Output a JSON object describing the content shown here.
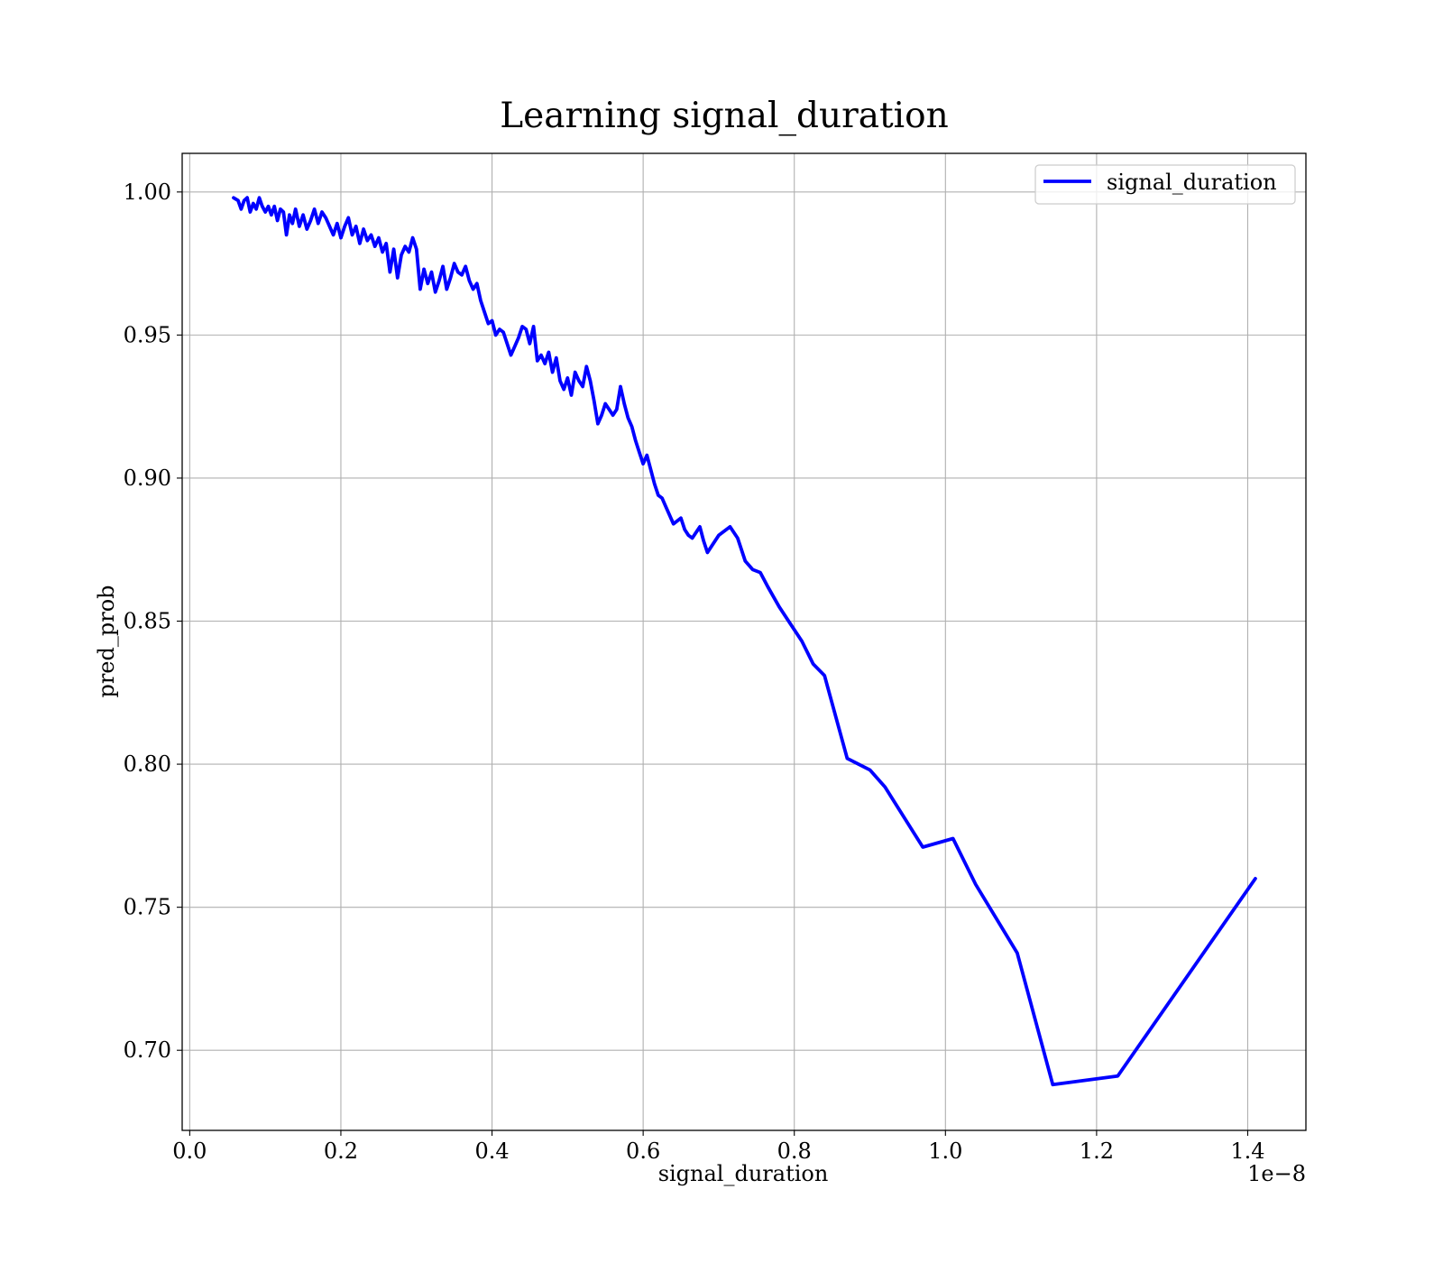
{
  "chart_data": {
    "type": "line",
    "title": "Learning signal_duration",
    "xlabel": "signal_duration",
    "ylabel": "pred_prob",
    "x_offset_label": "1e−8",
    "xlim": [
      -0.01,
      1.477
    ],
    "ylim": [
      0.672,
      1.0135
    ],
    "xticks": [
      0.0,
      0.2,
      0.4,
      0.6,
      0.8,
      1.0,
      1.2,
      1.4
    ],
    "xtick_labels": [
      "0.0",
      "0.2",
      "0.4",
      "0.6",
      "0.8",
      "1.0",
      "1.2",
      "1.4"
    ],
    "yticks": [
      0.7,
      0.75,
      0.8,
      0.85,
      0.9,
      0.95,
      1.0
    ],
    "ytick_labels": [
      "0.70",
      "0.75",
      "0.80",
      "0.85",
      "0.90",
      "0.95",
      "1.00"
    ],
    "grid": true,
    "legend_position": "top-right",
    "series": [
      {
        "name": "signal_duration",
        "color": "#0000ff",
        "x": [
          0.058,
          0.064,
          0.068,
          0.072,
          0.076,
          0.08,
          0.084,
          0.088,
          0.092,
          0.096,
          0.1,
          0.104,
          0.108,
          0.112,
          0.116,
          0.12,
          0.124,
          0.128,
          0.132,
          0.136,
          0.14,
          0.145,
          0.15,
          0.155,
          0.16,
          0.165,
          0.17,
          0.175,
          0.18,
          0.185,
          0.19,
          0.195,
          0.2,
          0.205,
          0.21,
          0.215,
          0.22,
          0.225,
          0.23,
          0.235,
          0.24,
          0.245,
          0.25,
          0.255,
          0.26,
          0.265,
          0.27,
          0.275,
          0.28,
          0.285,
          0.29,
          0.295,
          0.3,
          0.305,
          0.31,
          0.315,
          0.32,
          0.325,
          0.33,
          0.335,
          0.34,
          0.345,
          0.35,
          0.355,
          0.36,
          0.365,
          0.37,
          0.375,
          0.38,
          0.385,
          0.39,
          0.395,
          0.4,
          0.405,
          0.41,
          0.415,
          0.42,
          0.425,
          0.43,
          0.435,
          0.44,
          0.445,
          0.45,
          0.455,
          0.46,
          0.465,
          0.47,
          0.475,
          0.48,
          0.485,
          0.49,
          0.495,
          0.5,
          0.505,
          0.51,
          0.515,
          0.52,
          0.525,
          0.53,
          0.535,
          0.54,
          0.545,
          0.55,
          0.555,
          0.56,
          0.565,
          0.57,
          0.575,
          0.58,
          0.585,
          0.59,
          0.595,
          0.6,
          0.605,
          0.61,
          0.615,
          0.62,
          0.625,
          0.63,
          0.64,
          0.65,
          0.655,
          0.66,
          0.665,
          0.67,
          0.675,
          0.68,
          0.685,
          0.69,
          0.7,
          0.715,
          0.725,
          0.735,
          0.745,
          0.755,
          0.765,
          0.78,
          0.795,
          0.81,
          0.825,
          0.84,
          0.87,
          0.9,
          0.92,
          0.97,
          1.01,
          1.04,
          1.095,
          1.142,
          1.228,
          1.41
        ],
        "y": [
          0.998,
          0.997,
          0.994,
          0.997,
          0.998,
          0.993,
          0.996,
          0.994,
          0.998,
          0.995,
          0.993,
          0.995,
          0.992,
          0.995,
          0.99,
          0.994,
          0.993,
          0.985,
          0.992,
          0.989,
          0.994,
          0.988,
          0.992,
          0.987,
          0.99,
          0.994,
          0.989,
          0.993,
          0.991,
          0.988,
          0.985,
          0.989,
          0.984,
          0.988,
          0.991,
          0.985,
          0.988,
          0.982,
          0.987,
          0.983,
          0.985,
          0.981,
          0.984,
          0.979,
          0.982,
          0.972,
          0.98,
          0.97,
          0.978,
          0.981,
          0.979,
          0.984,
          0.98,
          0.966,
          0.973,
          0.968,
          0.972,
          0.965,
          0.969,
          0.974,
          0.966,
          0.97,
          0.975,
          0.972,
          0.971,
          0.974,
          0.969,
          0.966,
          0.968,
          0.962,
          0.958,
          0.954,
          0.955,
          0.95,
          0.952,
          0.951,
          0.947,
          0.943,
          0.946,
          0.949,
          0.953,
          0.952,
          0.947,
          0.953,
          0.941,
          0.943,
          0.94,
          0.944,
          0.937,
          0.942,
          0.934,
          0.931,
          0.935,
          0.929,
          0.937,
          0.934,
          0.932,
          0.939,
          0.934,
          0.927,
          0.919,
          0.922,
          0.926,
          0.924,
          0.922,
          0.924,
          0.932,
          0.926,
          0.921,
          0.918,
          0.913,
          0.909,
          0.905,
          0.908,
          0.903,
          0.898,
          0.894,
          0.893,
          0.89,
          0.884,
          0.886,
          0.882,
          0.88,
          0.879,
          0.881,
          0.883,
          0.878,
          0.874,
          0.876,
          0.88,
          0.883,
          0.879,
          0.871,
          0.868,
          0.867,
          0.862,
          0.855,
          0.849,
          0.843,
          0.835,
          0.831,
          0.802,
          0.798,
          0.792,
          0.771,
          0.774,
          0.758,
          0.734,
          0.688,
          0.691,
          0.76
        ]
      }
    ]
  }
}
